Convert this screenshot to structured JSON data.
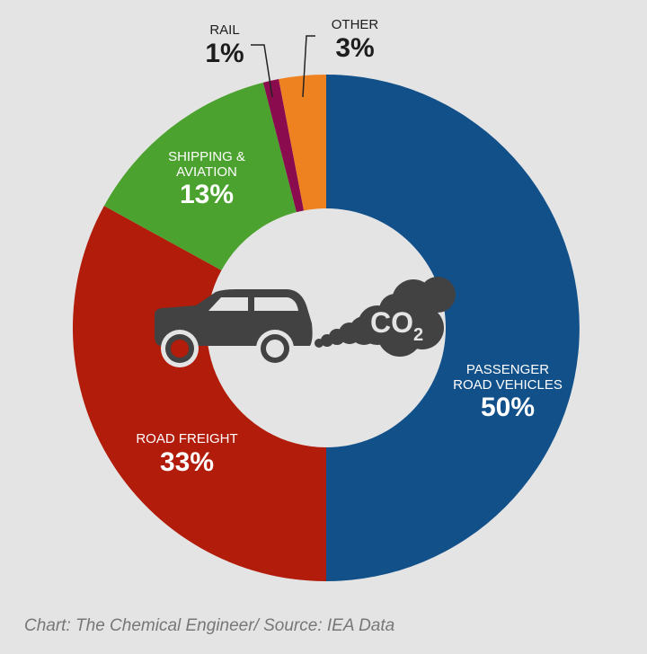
{
  "chart_data": {
    "type": "pie",
    "subtype": "donut",
    "slices": [
      {
        "label": "PASSENGER ROAD VEHICLES",
        "label_lines": [
          "PASSENGER",
          "ROAD VEHICLES"
        ],
        "value": 50,
        "display": "50%",
        "color": "#12508a"
      },
      {
        "label": "ROAD FREIGHT",
        "label_lines": [
          "ROAD FREIGHT"
        ],
        "value": 33,
        "display": "33%",
        "color": "#b21c0b"
      },
      {
        "label": "SHIPPING & AVIATION",
        "label_lines": [
          "SHIPPING &",
          "AVIATION"
        ],
        "value": 13,
        "display": "13%",
        "color": "#4ca22f"
      },
      {
        "label": "RAIL",
        "label_lines": [
          "RAIL"
        ],
        "value": 1,
        "display": "1%",
        "color": "#8b0b4f"
      },
      {
        "label": "OTHER",
        "label_lines": [
          "OTHER"
        ],
        "value": 3,
        "display": "3%",
        "color": "#ef8220"
      }
    ],
    "center_icon": "car-emitting-co2-icon",
    "center_text": "CO",
    "center_subscript": "2"
  },
  "source": "Chart: The Chemical Engineer/ Source: IEA Data"
}
